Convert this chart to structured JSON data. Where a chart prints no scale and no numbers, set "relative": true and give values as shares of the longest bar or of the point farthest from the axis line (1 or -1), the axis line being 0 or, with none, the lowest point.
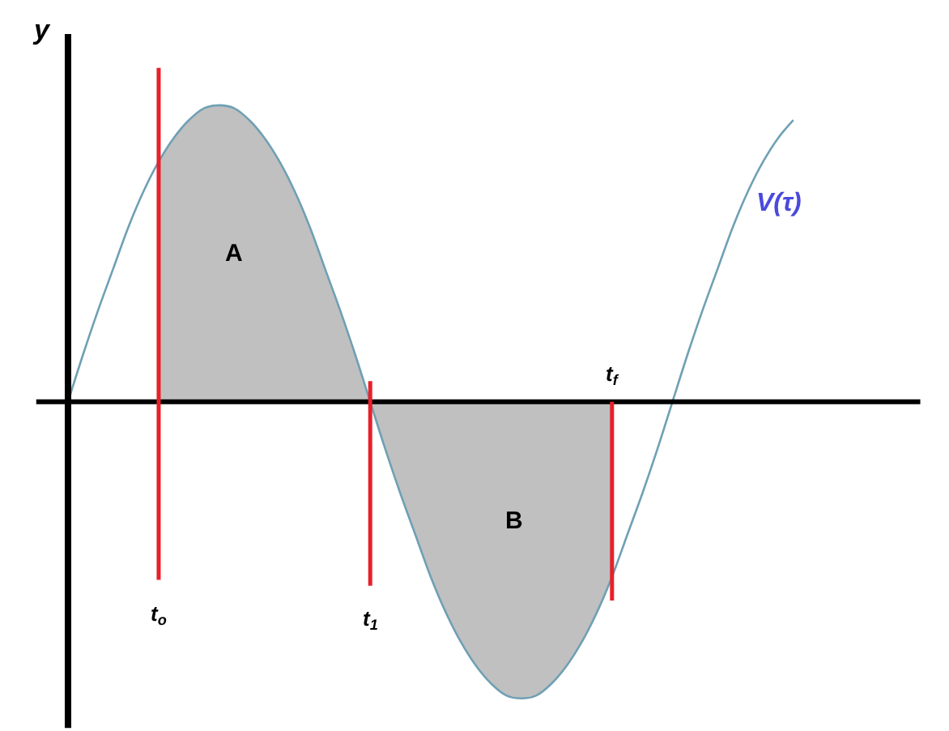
{
  "chart_data": {
    "type": "line",
    "relative": true,
    "ylabel": "y",
    "legend": false,
    "categories": [
      null,
      null,
      null,
      null,
      null,
      null,
      null,
      null,
      null,
      null,
      null,
      null,
      null,
      null,
      null,
      null,
      null,
      null,
      null,
      null,
      null,
      null,
      null,
      null,
      null,
      null,
      null,
      null,
      null,
      null,
      null,
      null,
      null,
      null,
      null,
      null,
      null,
      null,
      null,
      null,
      null,
      null,
      null,
      null,
      null,
      null,
      null,
      null,
      null
    ],
    "series": [
      {
        "type": "area",
        "color": "#c0c0c0",
        "values": [
          null,
          null,
          null,
          null,
          null,
          null,
          0.81,
          0.89,
          0.95,
          0.99,
          1,
          0.99,
          0.95,
          0.89,
          0.81,
          0.71,
          0.59,
          0.45,
          0.31,
          0.16,
          0,
          -0.16,
          -0.31,
          -0.45,
          -0.59,
          -0.71,
          -0.81,
          -0.89,
          -0.95,
          -0.99,
          -1,
          -0.99,
          -0.95,
          -0.89,
          -0.81,
          -0.71,
          -0.59,
          null,
          null,
          null,
          null,
          null,
          null,
          null,
          null,
          null,
          null,
          null,
          null
        ]
      },
      {
        "name": "V(τ)",
        "color": "#6fa0b4",
        "values": [
          0,
          0.16,
          0.31,
          0.45,
          0.59,
          0.71,
          0.81,
          0.89,
          0.95,
          0.99,
          1,
          0.99,
          0.95,
          0.89,
          0.81,
          0.71,
          0.59,
          0.45,
          0.31,
          0.16,
          0,
          -0.16,
          -0.31,
          -0.45,
          -0.59,
          -0.71,
          -0.81,
          -0.89,
          -0.95,
          -0.99,
          -1,
          -0.99,
          -0.95,
          -0.89,
          -0.81,
          -0.71,
          -0.59,
          -0.45,
          -0.31,
          -0.16,
          0,
          0.16,
          0.31,
          0.45,
          0.59,
          0.71,
          0.81,
          0.89,
          0.95
        ]
      }
    ],
    "annotations": [
      "A",
      "B",
      "t$_{o}$",
      "t$_{1}$",
      "t$_{f}$"
    ]
  }
}
